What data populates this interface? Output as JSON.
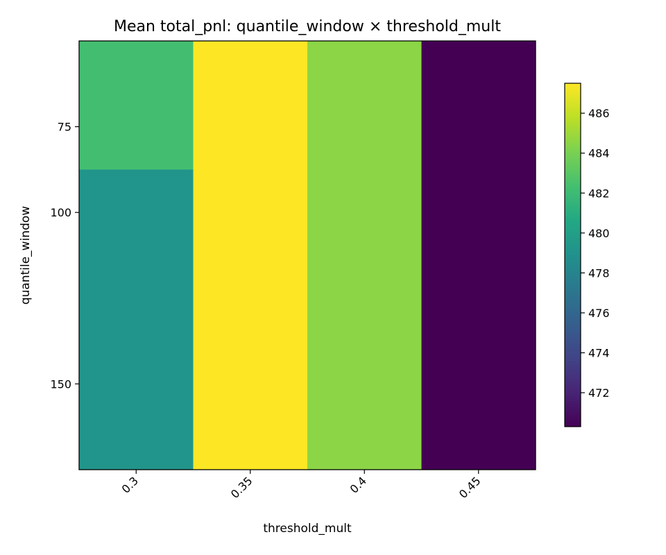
{
  "chart_data": {
    "type": "heatmap",
    "title": "Mean total_pnl: quantile_window × threshold_mult",
    "xlabel": "threshold_mult",
    "ylabel": "quantile_window",
    "x": [
      "0.3",
      "0.35",
      "0.4",
      "0.45"
    ],
    "y": [
      "75",
      "100",
      "150"
    ],
    "values": [
      [
        482.3,
        487.5,
        484.5,
        470.3
      ],
      [
        479.2,
        487.5,
        484.5,
        470.3
      ],
      [
        479.2,
        487.5,
        484.5,
        470.3
      ]
    ],
    "y_tick_positions": [
      75,
      100,
      150
    ],
    "y_extent": [
      50,
      175
    ],
    "colormap": "viridis",
    "colorbar": {
      "range": [
        470.3,
        487.5
      ],
      "ticks": [
        472,
        474,
        476,
        478,
        480,
        482,
        484,
        486
      ]
    },
    "grid": false
  }
}
